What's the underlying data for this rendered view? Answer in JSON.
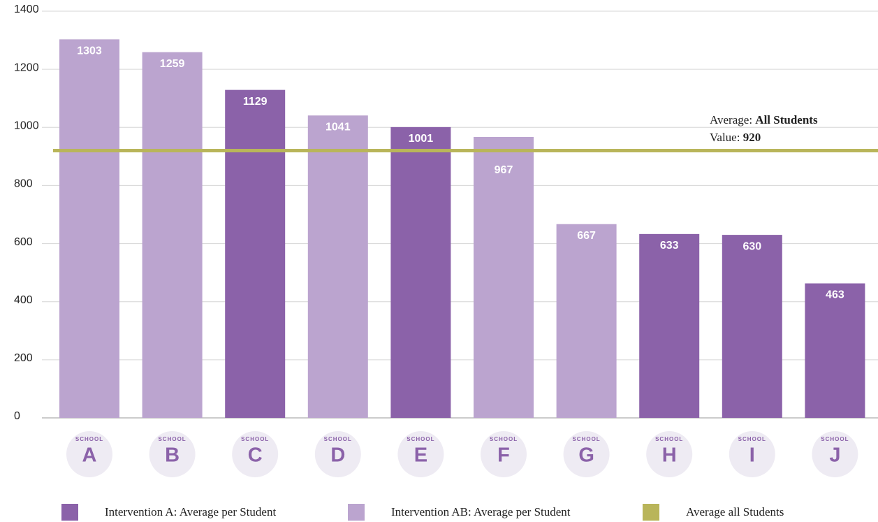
{
  "chart_data": {
    "type": "bar",
    "categories": [
      "A",
      "B",
      "C",
      "D",
      "E",
      "F",
      "G",
      "H",
      "I",
      "J"
    ],
    "category_prefix": "SCHOOL",
    "series": [
      {
        "name": "Intervention A: Average per Student",
        "color": "#8b62a9",
        "values": [
          null,
          null,
          1129,
          null,
          1001,
          null,
          null,
          633,
          630,
          463
        ]
      },
      {
        "name": "Intervention AB: Average per Student",
        "color": "#bba4cf",
        "values": [
          1303,
          1259,
          null,
          1041,
          null,
          967,
          667,
          null,
          null,
          null
        ]
      }
    ],
    "reference_line": {
      "name": "Average all Students",
      "value": 920,
      "color": "#b9b55a",
      "label_prefix": "Average:",
      "label_name": "All Students",
      "value_prefix": "Value:"
    },
    "ylim": [
      0,
      1400
    ],
    "yticks": [
      0,
      200,
      400,
      600,
      800,
      1000,
      1200,
      1400
    ],
    "grid": true,
    "legend": "bottom"
  }
}
